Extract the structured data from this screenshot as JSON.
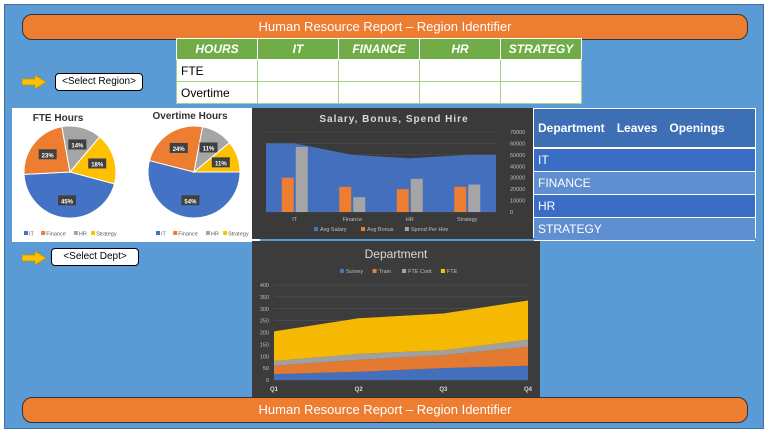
{
  "banner_top": "Human Resource Report – Region Identifier",
  "banner_bottom": "Human Resource Report – Region Identifier",
  "select_region": "<Select Region>",
  "select_dept": "<Select Dept>",
  "hours_table": {
    "headers": [
      "HOURS",
      "IT",
      "FINANCE",
      "HR",
      "STRATEGY"
    ],
    "rows": [
      {
        "label": "FTE"
      },
      {
        "label": "Overtime"
      }
    ]
  },
  "dept_table": {
    "headers": [
      "Department",
      "Leaves",
      "Openings"
    ],
    "rows": [
      "IT",
      "FINANCE",
      "HR",
      "STRATEGY"
    ]
  },
  "colors": {
    "it": "#4472c4",
    "finance": "#ed7d31",
    "hr": "#a5a5a5",
    "strategy": "#ffc000"
  },
  "chart_data": [
    {
      "type": "pie",
      "title": "FTE Hours",
      "labels": [
        "IT",
        "Finance",
        "HR",
        "Strategy"
      ],
      "values": [
        45,
        23,
        14,
        18
      ],
      "value_labels": [
        "45%",
        "23%",
        "14%",
        "18%"
      ],
      "legend": "bottom"
    },
    {
      "type": "pie",
      "title": "Overtime Hours",
      "labels": [
        "IT",
        "Finance",
        "HR",
        "Strategy"
      ],
      "values": [
        54,
        24,
        11,
        11
      ],
      "value_labels": [
        "54%",
        "24%",
        "11%",
        "11%"
      ],
      "legend": "bottom"
    },
    {
      "type": "bar",
      "title": "Salary, Bonus, Spend Hire",
      "categories": [
        "IT",
        "Finance",
        "HR",
        "Strategy"
      ],
      "series": [
        {
          "name": "Avg Salary",
          "kind": "area",
          "values": [
            60000,
            50000,
            47000,
            50000
          ]
        },
        {
          "name": "Avg Bonus",
          "kind": "bar",
          "values": [
            30000,
            22000,
            20000,
            22000
          ]
        },
        {
          "name": "Spend Per Hire",
          "kind": "bar",
          "values": [
            57000,
            13000,
            29000,
            24000
          ]
        }
      ],
      "ylim": [
        0,
        70000
      ],
      "yticks": [
        "70000",
        "60000",
        "50000",
        "40000",
        "30000",
        "20000",
        "10000",
        "0"
      ],
      "legend": "bottom"
    },
    {
      "type": "area",
      "title": "Department",
      "categories": [
        "Q1",
        "Q2",
        "Q3",
        "Q4"
      ],
      "series": [
        {
          "name": "Survey",
          "values": [
            25,
            35,
            50,
            60
          ]
        },
        {
          "name": "Train",
          "values": [
            35,
            50,
            55,
            80
          ]
        },
        {
          "name": "FTE Cont",
          "values": [
            20,
            25,
            20,
            30
          ]
        },
        {
          "name": "FTE",
          "values": [
            125,
            150,
            155,
            165
          ]
        }
      ],
      "ylim": [
        0,
        400
      ],
      "yticks": [
        "400",
        "350",
        "300",
        "250",
        "200",
        "150",
        "100",
        "50",
        "0"
      ],
      "legend": "top"
    }
  ]
}
